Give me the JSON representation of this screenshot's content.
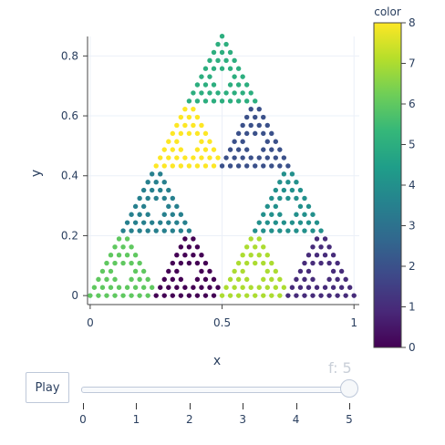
{
  "chart_data": {
    "type": "scatter",
    "title": "",
    "xlabel": "x",
    "ylabel": "y",
    "xlim": [
      -0.01,
      1.02
    ],
    "ylim": [
      -0.03,
      0.865
    ],
    "x_ticks": [
      0,
      0.5,
      1
    ],
    "x_tick_labels": [
      "0",
      "0.5",
      "1"
    ],
    "y_ticks": [
      0,
      0.2,
      0.4,
      0.6,
      0.8
    ],
    "y_tick_labels": [
      "0",
      "0.2",
      "0.4",
      "0.6",
      "0.8"
    ],
    "grid": true,
    "generator": "sierpinski-triangle",
    "sierpinski_depth": 5,
    "base_triangle": {
      "left": [
        0,
        0
      ],
      "right": [
        1,
        0
      ],
      "apex": [
        0.5,
        0.866
      ]
    },
    "colorbar": {
      "title": "color",
      "min": 0,
      "max": 8,
      "ticks": [
        0,
        1,
        2,
        3,
        4,
        5,
        6,
        7,
        8
      ],
      "tick_labels": [
        "0",
        "1",
        "2",
        "3",
        "4",
        "5",
        "6",
        "7",
        "8"
      ],
      "colorscale": "viridis"
    },
    "region_colors": [
      {
        "region": "bottom-left sub-triangle",
        "color_value": 6
      },
      {
        "region": "bottom-middle sub-triangle",
        "color_value": 0
      },
      {
        "region": "bottom-center-right sub-triangle",
        "color_value": 7
      },
      {
        "region": "bottom-right sub-triangle",
        "color_value": 1
      },
      {
        "region": "middle-left sub-triangle",
        "color_value": 3.5
      },
      {
        "region": "middle-right sub-triangle",
        "color_value": 4
      },
      {
        "region": "upper-left sub-triangle",
        "color_value": 8
      },
      {
        "region": "upper-right sub-triangle",
        "color_value": 2
      },
      {
        "region": "top sub-triangle",
        "color_value": 5
      }
    ]
  },
  "frame_label": "f: 5",
  "play_button": {
    "label": "Play"
  },
  "slider": {
    "labels": [
      "0",
      "1",
      "2",
      "3",
      "4",
      "5"
    ],
    "value": 5
  }
}
